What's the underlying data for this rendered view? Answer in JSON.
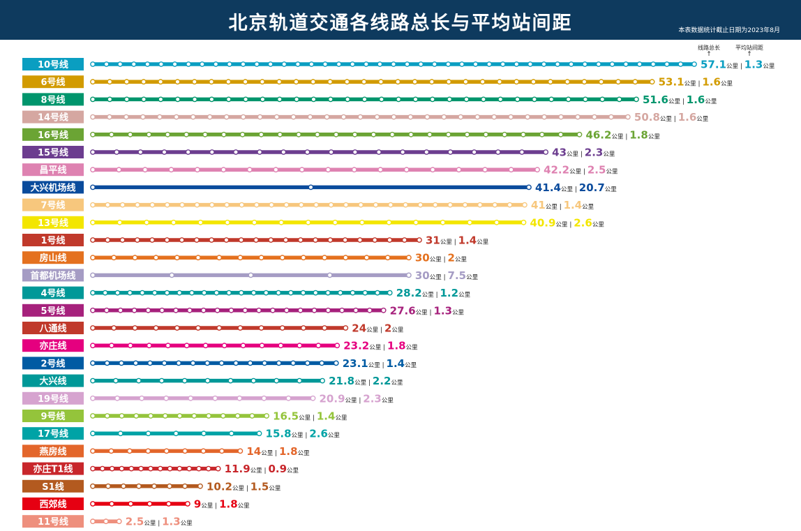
{
  "chart_data": {
    "type": "bar",
    "title": "北京轨道交通各线路总长与平均站间距",
    "note": "本表数据统计截止日期为2023年8月",
    "column_headers": {
      "length": "线路总长",
      "spacing": "平均站间距"
    },
    "unit": "公里",
    "separator": "|",
    "xlim": [
      0,
      57.1
    ],
    "series": [
      {
        "name": "线路总长",
        "values": [
          57.1,
          53.1,
          51.6,
          50.8,
          46.2,
          43,
          42.2,
          41.4,
          41,
          40.9,
          31,
          30,
          30,
          28.2,
          27.6,
          24,
          23.2,
          23.1,
          21.8,
          20.9,
          16.5,
          15.8,
          14,
          11.9,
          10.2,
          9,
          2.5
        ]
      }
    ],
    "lines": [
      {
        "name": "10号线",
        "length": "57.1",
        "spacing": "1.3",
        "color": "#0a9ec1"
      },
      {
        "name": "6号线",
        "length": "53.1",
        "spacing": "1.6",
        "color": "#d29b00"
      },
      {
        "name": "8号线",
        "length": "51.6",
        "spacing": "1.6",
        "color": "#00956c"
      },
      {
        "name": "14号线",
        "length": "50.8",
        "spacing": "1.6",
        "color": "#d5a7a1"
      },
      {
        "name": "16号线",
        "length": "46.2",
        "spacing": "1.8",
        "color": "#6ba434"
      },
      {
        "name": "15号线",
        "length": "43",
        "spacing": "2.3",
        "color": "#6c3d8f"
      },
      {
        "name": "昌平线",
        "length": "42.2",
        "spacing": "2.5",
        "color": "#de82b1"
      },
      {
        "name": "大兴机场线",
        "length": "41.4",
        "spacing": "20.7",
        "color": "#0a4b9c"
      },
      {
        "name": "7号线",
        "length": "41",
        "spacing": "1.4",
        "color": "#f7c77d"
      },
      {
        "name": "13号线",
        "length": "40.9",
        "spacing": "2.6",
        "color": "#f3e600"
      },
      {
        "name": "1号线",
        "length": "31",
        "spacing": "1.4",
        "color": "#c0392b"
      },
      {
        "name": "房山线",
        "length": "30",
        "spacing": "2",
        "color": "#e4711f"
      },
      {
        "name": "首都机场线",
        "length": "30",
        "spacing": "7.5",
        "color": "#a59cc4"
      },
      {
        "name": "4号线",
        "length": "28.2",
        "spacing": "1.2",
        "color": "#009898"
      },
      {
        "name": "5号线",
        "length": "27.6",
        "spacing": "1.3",
        "color": "#a6217c"
      },
      {
        "name": "八通线",
        "length": "24",
        "spacing": "2",
        "color": "#c0392b"
      },
      {
        "name": "亦庄线",
        "length": "23.2",
        "spacing": "1.8",
        "color": "#e5007f"
      },
      {
        "name": "2号线",
        "length": "23.1",
        "spacing": "1.4",
        "color": "#005ba3"
      },
      {
        "name": "大兴线",
        "length": "21.8",
        "spacing": "2.2",
        "color": "#009898"
      },
      {
        "name": "19号线",
        "length": "20.9",
        "spacing": "2.3",
        "color": "#d6a3cf"
      },
      {
        "name": "9号线",
        "length": "16.5",
        "spacing": "1.4",
        "color": "#94c43b"
      },
      {
        "name": "17号线",
        "length": "15.8",
        "spacing": "2.6",
        "color": "#00a3a6"
      },
      {
        "name": "燕房线",
        "length": "14",
        "spacing": "1.8",
        "color": "#e3662b"
      },
      {
        "name": "亦庄T1线",
        "length": "11.9",
        "spacing": "0.9",
        "color": "#c8262b"
      },
      {
        "name": "S1线",
        "length": "10.2",
        "spacing": "1.5",
        "color": "#b35a1f"
      },
      {
        "name": "西郊线",
        "length": "9",
        "spacing": "1.8",
        "color": "#e60012"
      },
      {
        "name": "11号线",
        "length": "2.5",
        "spacing": "1.3",
        "color": "#ee8f7d"
      }
    ]
  }
}
